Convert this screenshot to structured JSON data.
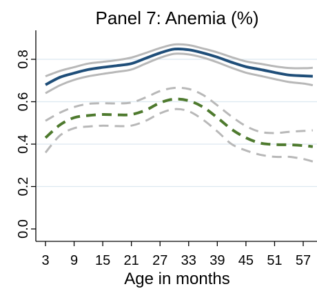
{
  "chart_data": {
    "type": "line",
    "title": "Panel 7: Anemia (%)",
    "xlabel": "Age in months",
    "ylabel": "",
    "xlim": [
      0,
      60
    ],
    "ylim": [
      0,
      0.8
    ],
    "xticks": [
      3,
      9,
      15,
      21,
      27,
      33,
      39,
      45,
      51,
      57
    ],
    "xtick_labels": [
      "3",
      "9",
      "15",
      "21",
      "27",
      "33",
      "39",
      "45",
      "51",
      "57"
    ],
    "yticks": [
      0,
      0.2,
      0.4,
      0.6,
      0.8
    ],
    "ytick_labels": [
      "0.0",
      "0.2",
      "0.4",
      "0.6",
      "0.8"
    ],
    "grid": "horizontal",
    "x": [
      3,
      6,
      9,
      12,
      15,
      18,
      21,
      24,
      27,
      30,
      33,
      36,
      39,
      42,
      45,
      48,
      51,
      54,
      57,
      59
    ],
    "series": [
      {
        "style": "solid",
        "color": "#1f4e79",
        "values": [
          0.68,
          0.715,
          0.735,
          0.752,
          0.762,
          0.77,
          0.78,
          0.805,
          0.83,
          0.848,
          0.845,
          0.83,
          0.81,
          0.786,
          0.765,
          0.752,
          0.738,
          0.726,
          0.722,
          0.72
        ],
        "ci_lower": [
          0.64,
          0.677,
          0.703,
          0.72,
          0.731,
          0.741,
          0.752,
          0.78,
          0.807,
          0.826,
          0.823,
          0.808,
          0.786,
          0.76,
          0.737,
          0.722,
          0.707,
          0.693,
          0.686,
          0.678
        ],
        "ci_upper": [
          0.72,
          0.745,
          0.763,
          0.78,
          0.788,
          0.796,
          0.808,
          0.83,
          0.853,
          0.87,
          0.867,
          0.851,
          0.833,
          0.81,
          0.79,
          0.779,
          0.767,
          0.759,
          0.758,
          0.76
        ]
      },
      {
        "style": "dashed",
        "color": "#4e7a2e",
        "values": [
          0.43,
          0.49,
          0.525,
          0.535,
          0.54,
          0.538,
          0.54,
          0.56,
          0.595,
          0.612,
          0.605,
          0.575,
          0.525,
          0.47,
          0.43,
          0.405,
          0.398,
          0.397,
          0.393,
          0.388
        ],
        "ci_lower": [
          0.36,
          0.44,
          0.475,
          0.483,
          0.487,
          0.485,
          0.487,
          0.51,
          0.545,
          0.565,
          0.555,
          0.515,
          0.46,
          0.4,
          0.37,
          0.35,
          0.34,
          0.34,
          0.33,
          0.318
        ],
        "ci_upper": [
          0.51,
          0.548,
          0.575,
          0.59,
          0.593,
          0.592,
          0.596,
          0.62,
          0.65,
          0.665,
          0.66,
          0.632,
          0.583,
          0.53,
          0.485,
          0.458,
          0.452,
          0.458,
          0.462,
          0.465
        ]
      }
    ],
    "ci_color": "#b8b8b8",
    "grid_color": "#dce8f0"
  }
}
